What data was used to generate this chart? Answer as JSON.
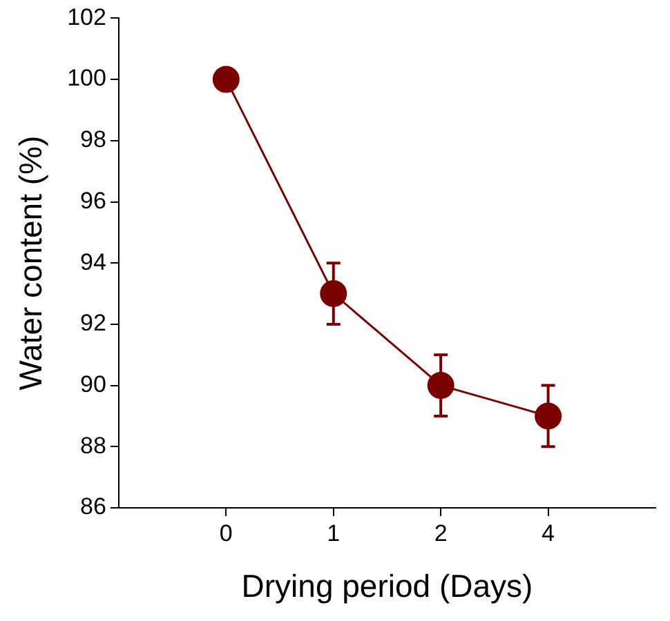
{
  "chart_data": {
    "type": "line",
    "xlabel": "Drying period (Days)",
    "ylabel": "Water content (%)",
    "categories": [
      "0",
      "1",
      "2",
      "4"
    ],
    "series": [
      {
        "color": "#7a0000",
        "values": [
          100,
          93,
          90,
          89
        ],
        "errors": [
          null,
          1,
          1,
          1
        ]
      }
    ],
    "ylim": [
      86,
      102
    ],
    "yticks": [
      86,
      88,
      90,
      92,
      94,
      96,
      98,
      100,
      102
    ],
    "grid": false,
    "legend": false,
    "marker": "circle",
    "line_style": "solid"
  }
}
